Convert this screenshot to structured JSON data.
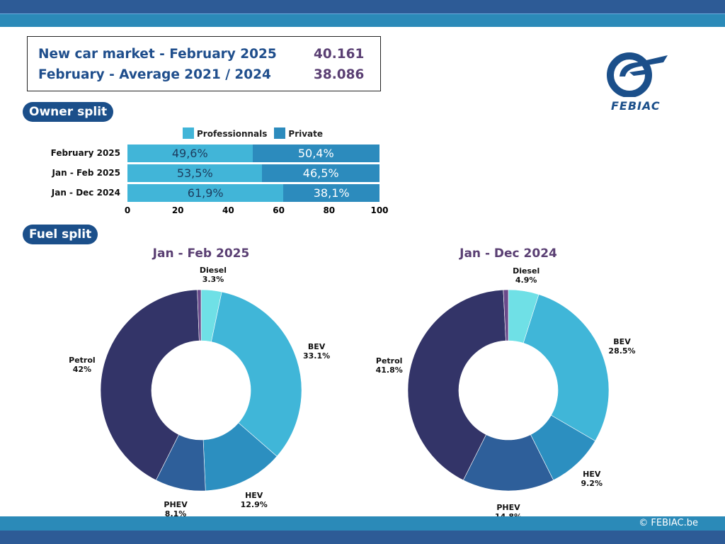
{
  "kpi": {
    "rows": [
      {
        "label": "New car market - February 2025",
        "value": "40.161"
      },
      {
        "label": "February - Average 2021 / 2024",
        "value": "38.086"
      }
    ]
  },
  "logo": {
    "text": "FEBIAC"
  },
  "sections": {
    "owner": "Owner split",
    "fuel": "Fuel split"
  },
  "footer": {
    "copyright": "© FEBIAC.be"
  },
  "chart_data": [
    {
      "type": "bar",
      "stacked": true,
      "orientation": "horizontal",
      "title": "Owner split",
      "categories": [
        "February 2025",
        "Jan - Feb 2025",
        "Jan - Dec 2024"
      ],
      "series": [
        {
          "name": "Professionnals",
          "color": "#41b5d8",
          "values": [
            49.6,
            53.5,
            61.9
          ],
          "labels": [
            "49,6%",
            "53,5%",
            "61,9%"
          ]
        },
        {
          "name": "Private",
          "color": "#2c8bbd",
          "values": [
            50.4,
            46.5,
            38.1
          ],
          "labels": [
            "50,4%",
            "46,5%",
            "38,1%"
          ]
        }
      ],
      "xlim": [
        0,
        100
      ],
      "xticks": [
        "0",
        "20",
        "40",
        "60",
        "80",
        "100"
      ],
      "legend": "top"
    },
    {
      "type": "pie",
      "donut": true,
      "title": "Jan - Feb 2025",
      "slices": [
        {
          "name": "Diesel",
          "value": 3.3,
          "label": "3.3%",
          "color": "#6fe0e6"
        },
        {
          "name": "BEV",
          "value": 33.1,
          "label": "33.1%",
          "color": "#40b6d8"
        },
        {
          "name": "HEV",
          "value": 12.9,
          "label": "12.9%",
          "color": "#2c8fc0"
        },
        {
          "name": "PHEV",
          "value": 8.1,
          "label": "8.1%",
          "color": "#2e5f9a"
        },
        {
          "name": "Petrol",
          "value": 42,
          "label": "42%",
          "color": "#333468"
        },
        {
          "value": 0.6,
          "color": "#6a4a8a"
        }
      ]
    },
    {
      "type": "pie",
      "donut": true,
      "title": "Jan - Dec 2024",
      "slices": [
        {
          "name": "Diesel",
          "value": 4.9,
          "label": "4.9%",
          "color": "#6fe0e6"
        },
        {
          "name": "BEV",
          "value": 28.5,
          "label": "28.5%",
          "color": "#40b6d8"
        },
        {
          "name": "HEV",
          "value": 9.2,
          "label": "9.2%",
          "color": "#2c8fc0"
        },
        {
          "name": "PHEV",
          "value": 14.8,
          "label": "14.8%",
          "color": "#2e5f9a"
        },
        {
          "name": "Petrol",
          "value": 41.8,
          "label": "41.8%",
          "color": "#333468"
        },
        {
          "value": 0.8,
          "color": "#6a4a8a"
        }
      ]
    }
  ]
}
